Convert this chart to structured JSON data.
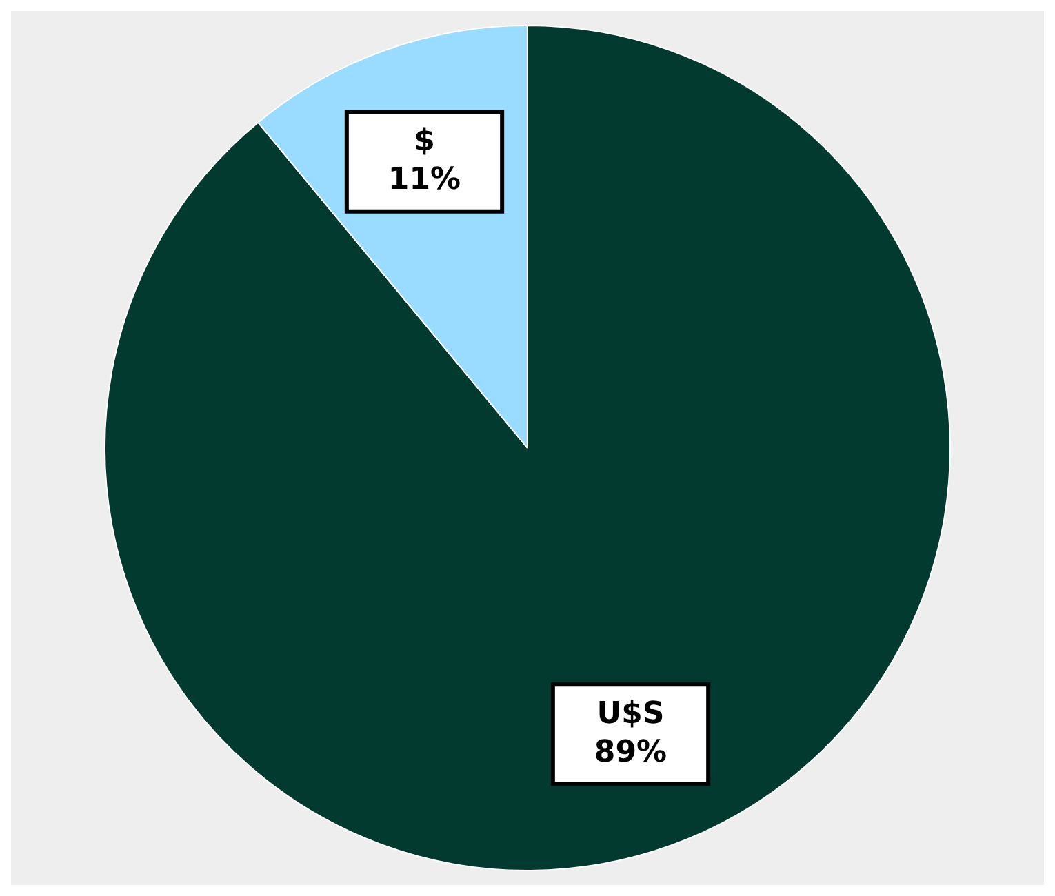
{
  "chart_data": {
    "type": "pie",
    "categories": [
      "U$S",
      "$"
    ],
    "values": [
      89,
      11
    ],
    "colors": [
      "#033a30",
      "#99dcff"
    ],
    "value_labels": [
      "89%",
      "11%"
    ],
    "legend": false
  }
}
